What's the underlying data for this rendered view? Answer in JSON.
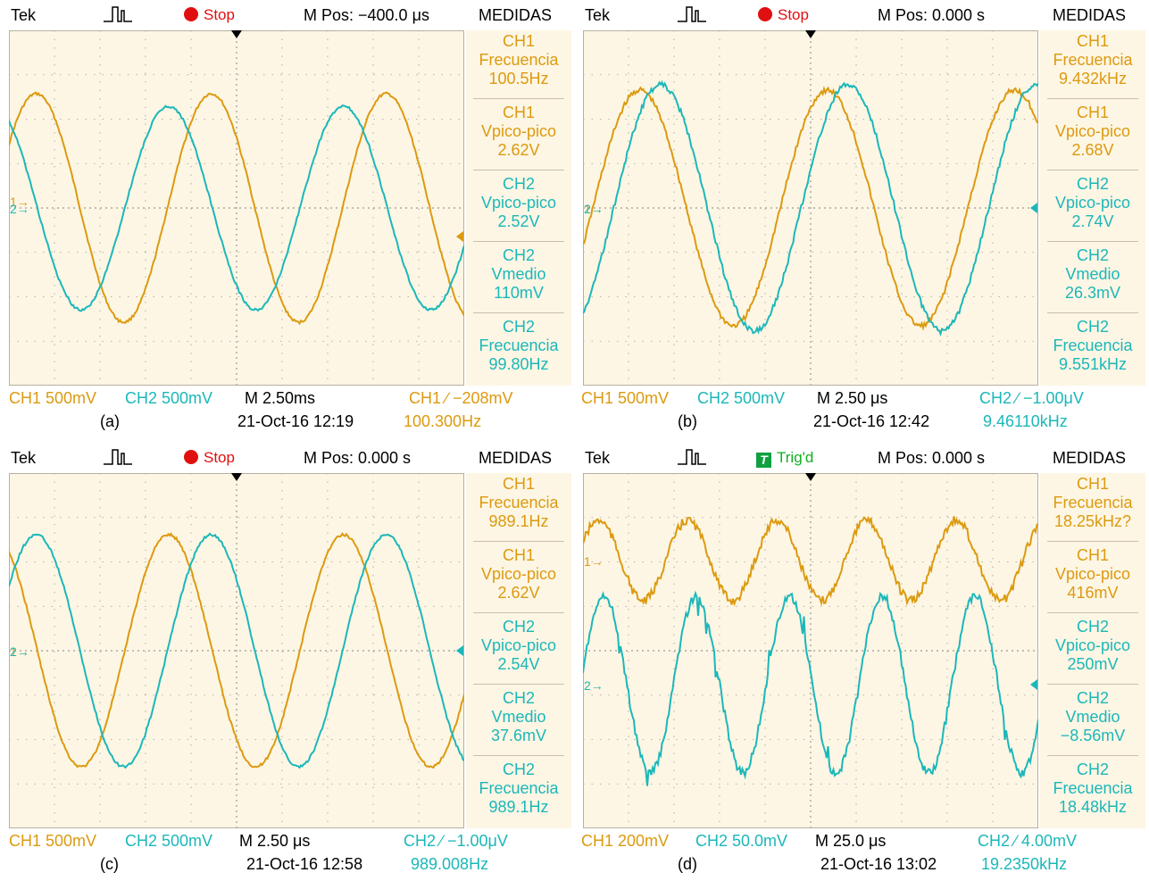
{
  "colors": {
    "ch1": "#dc9a10",
    "ch2": "#1cb7b9",
    "stop": "#e01010",
    "trig": "#10b020",
    "screen": "#fdf6e4",
    "grid": "#9a9a9a"
  },
  "panels": [
    {
      "brand": "Tek",
      "acq_icon": "acquisition-pulse-icon",
      "state": "Stop",
      "mpos": "M Pos: −400.0 μs",
      "menu": "MEDIDAS",
      "measures": [
        {
          "ch": "CH1",
          "name": "Frecuencia",
          "value": "100.5Hz"
        },
        {
          "ch": "CH1",
          "name": "Vpico-pico",
          "value": "2.62V"
        },
        {
          "ch": "CH2",
          "name": "Vpico-pico",
          "value": "2.52V"
        },
        {
          "ch": "CH2",
          "name": "Vmedio",
          "value": "110mV"
        },
        {
          "ch": "CH2",
          "name": "Frecuencia",
          "value": "99.80Hz"
        }
      ],
      "ch1_scale": "CH1 500mV",
      "ch2_scale": "CH2 500mV",
      "timebase": "M 2.50ms",
      "trigger": "CH1 ∕ −208mV",
      "label": "(a)",
      "datetime": "21-Oct-16  12:19",
      "trig_freq": "100.300Hz",
      "markers": {
        "ch1": "1",
        "ch2": "2"
      }
    },
    {
      "brand": "Tek",
      "acq_icon": "acquisition-pulse-icon",
      "state": "Stop",
      "mpos": "M Pos: 0.000 s",
      "menu": "MEDIDAS",
      "measures": [
        {
          "ch": "CH1",
          "name": "Frecuencia",
          "value": "9.432kHz"
        },
        {
          "ch": "CH1",
          "name": "Vpico-pico",
          "value": "2.68V"
        },
        {
          "ch": "CH2",
          "name": "Vpico-pico",
          "value": "2.74V"
        },
        {
          "ch": "CH2",
          "name": "Vmedio",
          "value": "26.3mV"
        },
        {
          "ch": "CH2",
          "name": "Frecuencia",
          "value": "9.551kHz"
        }
      ],
      "ch1_scale": "CH1 500mV",
      "ch2_scale": "CH2 500mV",
      "timebase": "M 2.50 μs",
      "trigger": "CH2 ∕ −1.00μV",
      "label": "(b)",
      "datetime": "21-Oct-16 12:42",
      "trig_freq": "9.46110kHz",
      "markers": {
        "ch1": "1",
        "ch2": "2"
      }
    },
    {
      "brand": "Tek",
      "acq_icon": "acquisition-pulse-icon",
      "state": "Stop",
      "mpos": "M Pos: 0.000 s",
      "menu": "MEDIDAS",
      "measures": [
        {
          "ch": "CH1",
          "name": "Frecuencia",
          "value": "989.1Hz"
        },
        {
          "ch": "CH1",
          "name": "Vpico-pico",
          "value": "2.62V"
        },
        {
          "ch": "CH2",
          "name": "Vpico-pico",
          "value": "2.54V"
        },
        {
          "ch": "CH2",
          "name": "Vmedio",
          "value": "37.6mV"
        },
        {
          "ch": "CH2",
          "name": "Frecuencia",
          "value": "989.1Hz"
        }
      ],
      "ch1_scale": "CH1 500mV",
      "ch2_scale": "CH2 500mV",
      "timebase": "M 2.50 μs",
      "trigger": "CH2 ∕ −1.00μV",
      "label": "(c)",
      "datetime": "21-Oct-16 12:58",
      "trig_freq": "989.008Hz",
      "markers": {
        "ch1": "1",
        "ch2": "2"
      }
    },
    {
      "brand": "Tek",
      "acq_icon": "acquisition-pulse-icon",
      "state": "Trig'd",
      "state_icon_label": "T",
      "mpos": "M Pos: 0.000 s",
      "menu": "MEDIDAS",
      "measures": [
        {
          "ch": "CH1",
          "name": "Frecuencia",
          "value": "18.25kHz?"
        },
        {
          "ch": "CH1",
          "name": "Vpico-pico",
          "value": "416mV"
        },
        {
          "ch": "CH2",
          "name": "Vpico-pico",
          "value": "250mV"
        },
        {
          "ch": "CH2",
          "name": "Vmedio",
          "value": "−8.56mV"
        },
        {
          "ch": "CH2",
          "name": "Frecuencia",
          "value": "18.48kHz"
        }
      ],
      "ch1_scale": "CH1 200mV",
      "ch2_scale": "CH2 50.0mV",
      "timebase": "M 25.0 μs",
      "trigger": "CH2 ∕ 4.00mV",
      "label": "(d)",
      "datetime": "21-Oct-16 13:02",
      "trig_freq": "19.2350kHz",
      "markers": {
        "ch1": "1",
        "ch2": "2"
      }
    }
  ]
}
